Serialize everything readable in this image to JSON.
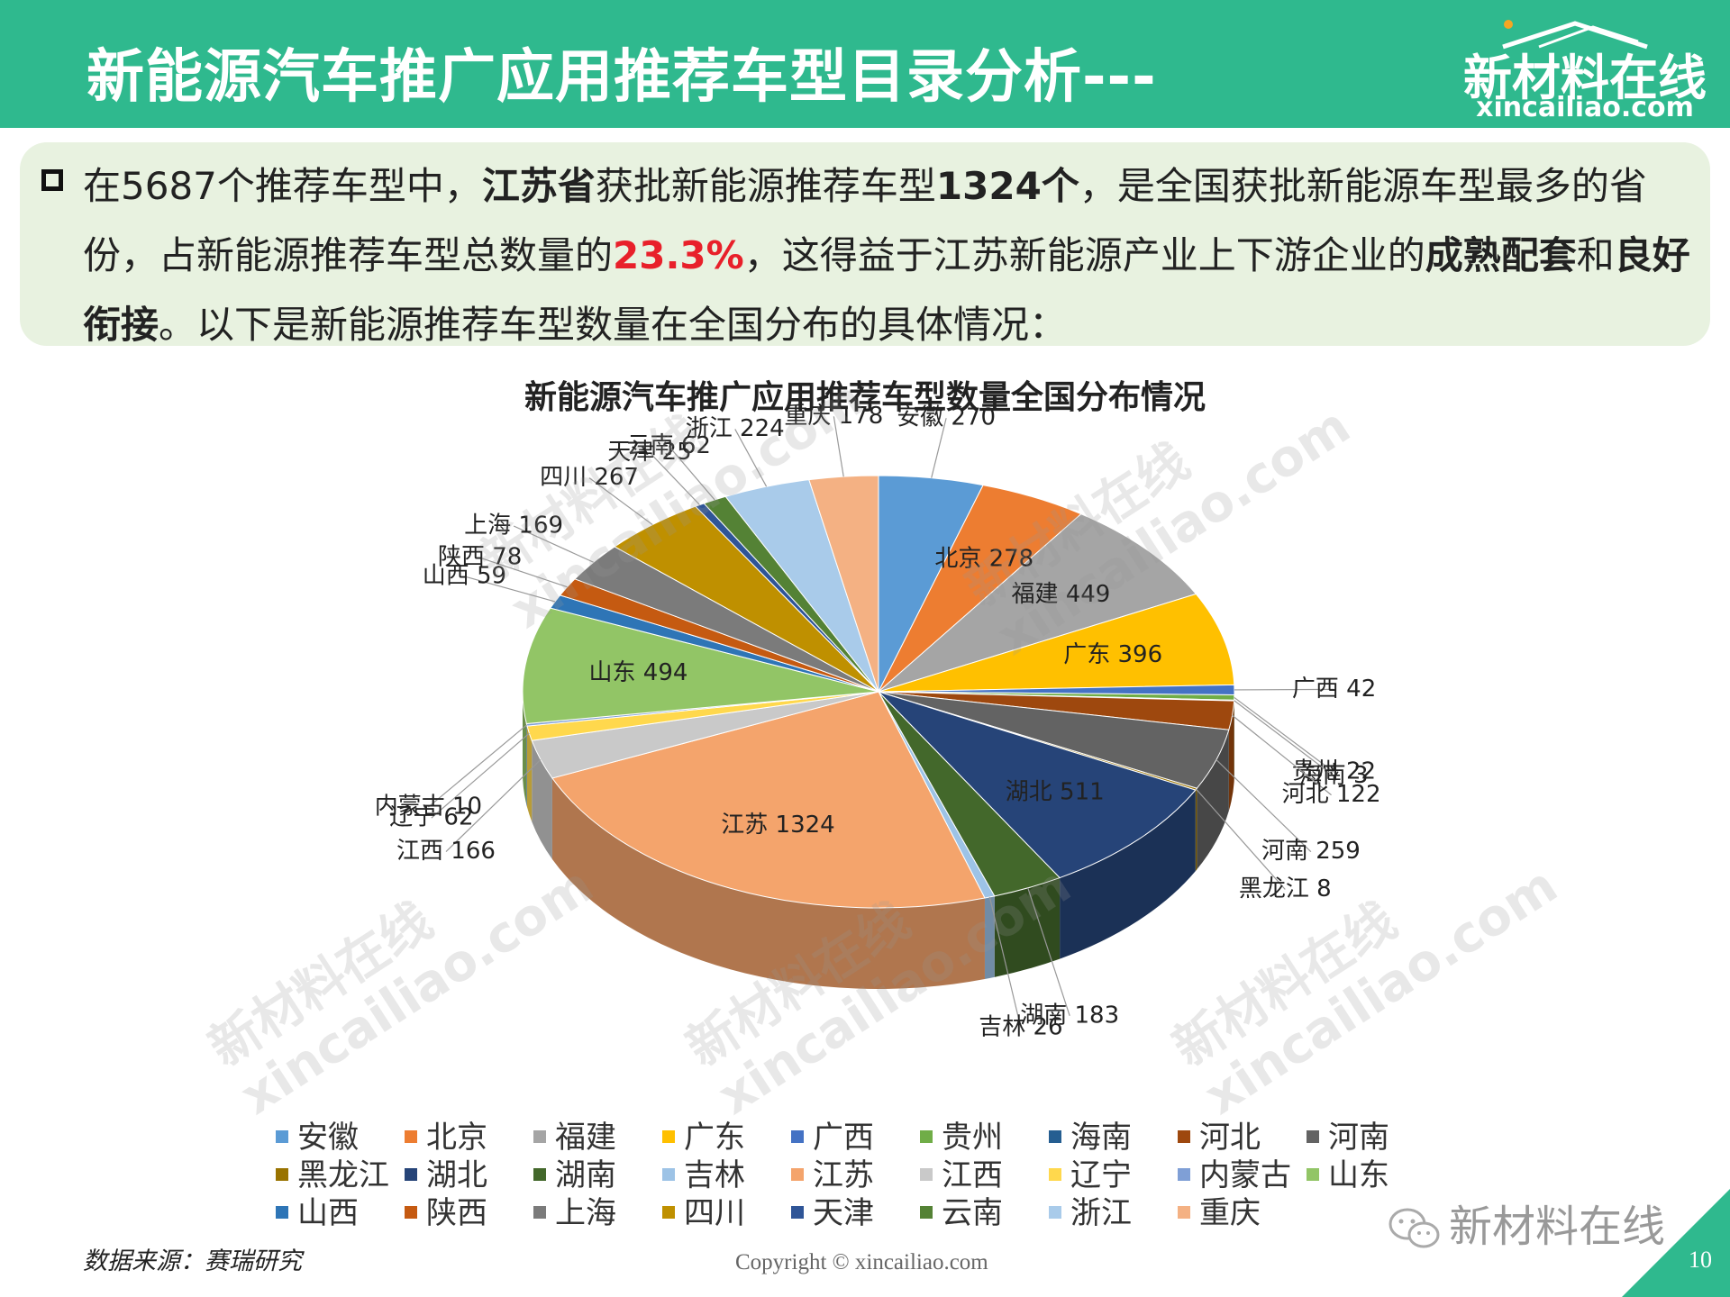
{
  "header": {
    "title": "新能源汽车推广应用推荐车型目录分析---",
    "logo_main": "新材料在线",
    "logo_url": "xincailiao.com"
  },
  "intro": {
    "part1": "在5687个推荐车型中，",
    "part2": "江苏省",
    "part3": "获批新能源推荐车型",
    "part4": "1324个",
    "part5": "，是全国获批新能源车型最多的省份，占新能源推荐车型总数量的",
    "part6": "23.3%",
    "part7": "，这得益于江苏新能源产业上下游企业的",
    "part8": "成熟配套",
    "part9": "和",
    "part10": "良好衔接",
    "part11": "。以下是新能源推荐车型数量在全国分布的具体情况："
  },
  "chart_data": {
    "type": "pie",
    "title": "新能源汽车推广应用推荐车型数量全国分布情况",
    "legend_position": "bottom",
    "slices": [
      {
        "name": "安徽",
        "value": 270,
        "color": "#5b9bd5"
      },
      {
        "name": "北京",
        "value": 278,
        "color": "#ed7d31"
      },
      {
        "name": "福建",
        "value": 449,
        "color": "#a5a5a5"
      },
      {
        "name": "广东",
        "value": 396,
        "color": "#ffc000"
      },
      {
        "name": "广西",
        "value": 42,
        "color": "#4472c4"
      },
      {
        "name": "贵州",
        "value": 22,
        "color": "#70ad47"
      },
      {
        "name": "海南",
        "value": 3,
        "color": "#255e91"
      },
      {
        "name": "河北",
        "value": 122,
        "color": "#9e480e"
      },
      {
        "name": "河南",
        "value": 259,
        "color": "#636363"
      },
      {
        "name": "黑龙江",
        "value": 8,
        "color": "#997300"
      },
      {
        "name": "湖北",
        "value": 511,
        "color": "#264478"
      },
      {
        "name": "湖南",
        "value": 183,
        "color": "#43682b"
      },
      {
        "name": "吉林",
        "value": 26,
        "color": "#9dc3e6"
      },
      {
        "name": "江苏",
        "value": 1324,
        "color": "#f4a46c"
      },
      {
        "name": "江西",
        "value": 166,
        "color": "#c9c9c9"
      },
      {
        "name": "辽宁",
        "value": 62,
        "color": "#ffd84d"
      },
      {
        "name": "内蒙古",
        "value": 10,
        "color": "#7f9fd6"
      },
      {
        "name": "山东",
        "value": 494,
        "color": "#92c566"
      },
      {
        "name": "山西",
        "value": 59,
        "color": "#2e75b6"
      },
      {
        "name": "陕西",
        "value": 78,
        "color": "#c55a11"
      },
      {
        "name": "上海",
        "value": 169,
        "color": "#7b7b7b"
      },
      {
        "name": "四川",
        "value": 267,
        "color": "#bf9000"
      },
      {
        "name": "天津",
        "value": 25,
        "color": "#2f5597"
      },
      {
        "name": "云南",
        "value": 62,
        "color": "#548235"
      },
      {
        "name": "浙江",
        "value": 224,
        "color": "#a9cbea"
      },
      {
        "name": "重庆",
        "value": 178,
        "color": "#f4b183"
      }
    ]
  },
  "source": "数据来源：赛瑞研究",
  "copyright": "Copyright © xincailiao.com",
  "wechat": "新材料在线",
  "page_number": "10",
  "watermarks": [
    "新材料在线",
    "xincailiao.com"
  ]
}
